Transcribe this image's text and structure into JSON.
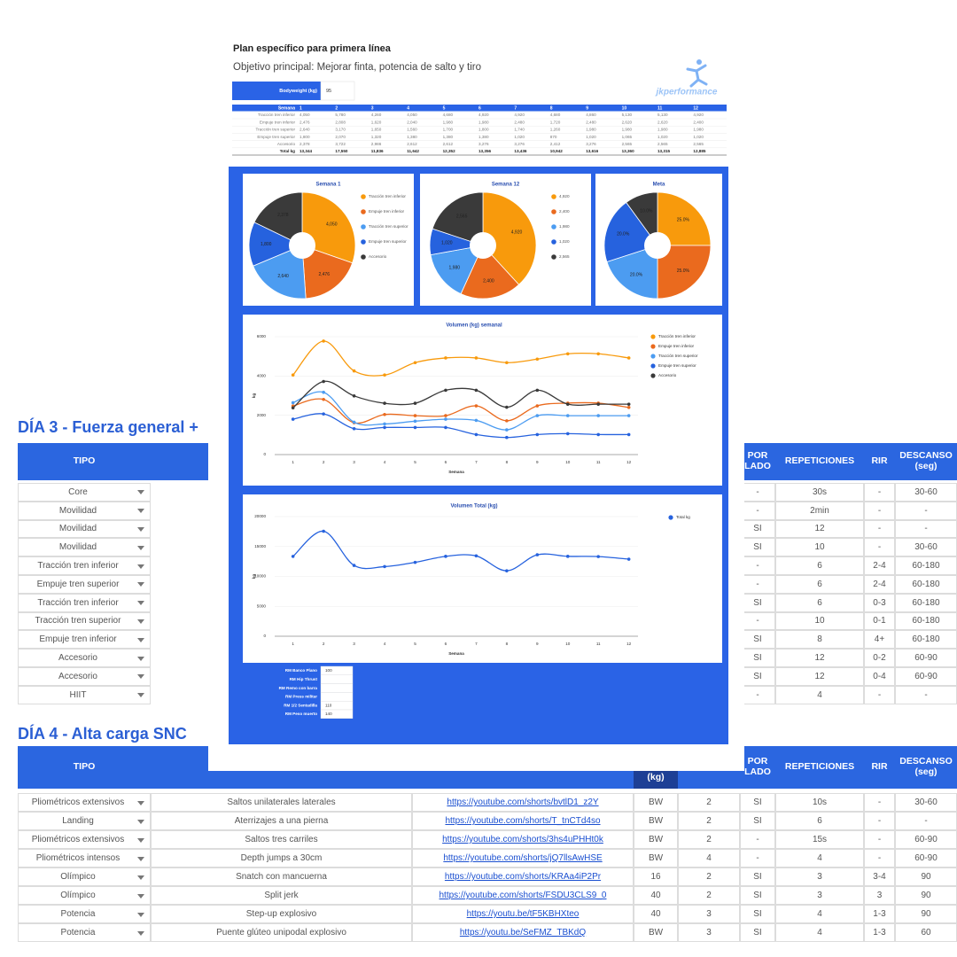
{
  "overlay": {
    "title": "Plan específico para primera línea",
    "subtitle": "Objetivo principal: Mejorar finta, potencia de salto y tiro",
    "logo": "jkperformance",
    "bodyweight": {
      "label": "Bodyweight (kg)",
      "value": "95"
    },
    "volume_table": {
      "header": [
        "Semana",
        "1",
        "2",
        "3",
        "4",
        "5",
        "6",
        "7",
        "8",
        "9",
        "10",
        "11",
        "12"
      ],
      "rows": [
        [
          "Tracción tren inferior",
          "4,050",
          "5,780",
          "4,260",
          "4,050",
          "4,680",
          "4,920",
          "4,920",
          "4,680",
          "4,860",
          "5,130",
          "5,130",
          "4,920"
        ],
        [
          "Empuje tren inferior",
          "2,476",
          "2,808",
          "1,620",
          "2,040",
          "1,980",
          "1,980",
          "2,480",
          "1,720",
          "2,480",
          "2,620",
          "2,620",
          "2,400"
        ],
        [
          "Tracción tren superior",
          "2,640",
          "3,170",
          "1,650",
          "1,560",
          "1,700",
          "1,800",
          "1,740",
          "1,260",
          "1,980",
          "1,980",
          "1,980",
          "1,980"
        ],
        [
          "Empuje tren superior",
          "1,800",
          "2,070",
          "1,320",
          "1,380",
          "1,380",
          "1,380",
          "1,020",
          "870",
          "1,020",
          "1,065",
          "1,020",
          "1,020"
        ],
        [
          "Accesorio",
          "2,378",
          "3,722",
          "2,986",
          "2,612",
          "2,612",
          "3,276",
          "3,276",
          "2,412",
          "3,276",
          "2,565",
          "2,565",
          "2,565"
        ],
        [
          "Total kg",
          "13,344",
          "17,550",
          "11,836",
          "11,642",
          "12,352",
          "13,356",
          "13,436",
          "10,942",
          "13,616",
          "13,360",
          "13,315",
          "12,885"
        ]
      ]
    },
    "rm": [
      {
        "label": "RM Banco Plano",
        "value": "100"
      },
      {
        "label": "RM Hip Thrust"
      },
      {
        "label": "RM Remo con barra"
      },
      {
        "label": "RM Press militar"
      },
      {
        "label": "RM 1/2 Sentadilla",
        "value": "110"
      },
      {
        "label": "RM Peso muerto",
        "value": "140"
      }
    ]
  },
  "chart_data": [
    {
      "type": "pie",
      "title": "Semana 1",
      "categories": [
        "Tracción tren inferior",
        "Empuje tren inferior",
        "Tracción tren superior",
        "Empuje tren superior",
        "Accesorio"
      ],
      "values": [
        4050,
        2476,
        2640,
        1800,
        2378
      ],
      "value_labels": [
        "4,050",
        "2,476",
        "2,640",
        "1,800",
        "2,378"
      ],
      "colors": [
        "#f89a0c",
        "#ea6a1e",
        "#4c9cf1",
        "#2662de",
        "#3a3a3a"
      ]
    },
    {
      "type": "pie",
      "title": "Semana 12",
      "categories": [
        "4,920",
        "2,400",
        "1,980",
        "1,020",
        "2,565"
      ],
      "values": [
        4920,
        2400,
        1980,
        1020,
        2565
      ],
      "value_labels": [
        "4,920",
        "2,400",
        "1,980",
        "1,020",
        "2,565"
      ],
      "colors": [
        "#f89a0c",
        "#ea6a1e",
        "#4c9cf1",
        "#2662de",
        "#3a3a3a"
      ]
    },
    {
      "type": "pie",
      "title": "Meta",
      "values": [
        25,
        25,
        20,
        20,
        10
      ],
      "value_labels": [
        "25.0%",
        "25.0%",
        "20.0%",
        "20.0%",
        "10.0%"
      ],
      "colors": [
        "#f89a0c",
        "#ea6a1e",
        "#4c9cf1",
        "#2662de",
        "#3a3a3a"
      ]
    },
    {
      "type": "line",
      "title": "Volumen (kg) semanal",
      "xlabel": "Semana",
      "ylabel": "kg",
      "x": [
        1,
        2,
        3,
        4,
        5,
        6,
        7,
        8,
        9,
        10,
        11,
        12
      ],
      "xlim": [
        0.4,
        12.3
      ],
      "xticks": [
        1,
        2,
        3,
        4,
        5,
        6,
        7,
        8,
        9,
        10,
        11,
        12
      ],
      "ylim": [
        0,
        6000
      ],
      "yticks": [
        0,
        2000,
        4000,
        6000
      ],
      "grid": true,
      "series": [
        {
          "name": "Tracción tren inferior",
          "color": "#f89a0c",
          "values": [
            4050,
            5780,
            4260,
            4050,
            4680,
            4920,
            4920,
            4680,
            4860,
            5130,
            5130,
            4920
          ]
        },
        {
          "name": "Empuje tren inferior",
          "color": "#ea6a1e",
          "values": [
            2476,
            2808,
            1620,
            2040,
            1980,
            1980,
            2480,
            1720,
            2480,
            2620,
            2620,
            2400
          ]
        },
        {
          "name": "Tracción tren superior",
          "color": "#4c9cf1",
          "values": [
            2640,
            3170,
            1650,
            1560,
            1700,
            1800,
            1740,
            1260,
            1980,
            1980,
            1980,
            1980
          ]
        },
        {
          "name": "Empuje tren superior",
          "color": "#2662de",
          "values": [
            1800,
            2070,
            1320,
            1380,
            1380,
            1380,
            1020,
            870,
            1020,
            1065,
            1020,
            1020
          ]
        },
        {
          "name": "Accesorio",
          "color": "#3a3a3a",
          "values": [
            2378,
            3722,
            2986,
            2612,
            2612,
            3276,
            3276,
            2412,
            3276,
            2565,
            2565,
            2565
          ]
        }
      ]
    },
    {
      "type": "line",
      "title": "Volumen Total (kg)",
      "xlabel": "Semana",
      "ylabel": "kg",
      "x": [
        1,
        2,
        3,
        4,
        5,
        6,
        7,
        8,
        9,
        10,
        11,
        12
      ],
      "xlim": [
        0.4,
        12.3
      ],
      "xticks": [
        1,
        2,
        3,
        4,
        5,
        6,
        7,
        8,
        9,
        10,
        11,
        12
      ],
      "ylim": [
        0,
        20000
      ],
      "yticks": [
        0,
        5000,
        10000,
        15000,
        20000
      ],
      "grid": true,
      "series": [
        {
          "name": "Total kg",
          "color": "#2662de",
          "values": [
            13344,
            17550,
            11836,
            11642,
            12352,
            13356,
            13436,
            10942,
            13616,
            13360,
            13315,
            12885
          ]
        }
      ]
    }
  ],
  "day3": {
    "title": "DÍA 3 - Fuerza general +",
    "header": [
      "TIPO",
      "POR LADO",
      "REPETICIONES",
      "RIR",
      "DESCANSO (seg)"
    ],
    "rows": [
      [
        "Core",
        "-",
        "30s",
        "-",
        "30-60"
      ],
      [
        "Movilidad",
        "-",
        "2min",
        "-",
        "-"
      ],
      [
        "Movilidad",
        "SI",
        "12",
        "-",
        "-"
      ],
      [
        "Movilidad",
        "SI",
        "10",
        "-",
        "30-60"
      ],
      [
        "Tracción tren inferior",
        "-",
        "6",
        "2-4",
        "60-180"
      ],
      [
        "Empuje tren superior",
        "-",
        "6",
        "2-4",
        "60-180"
      ],
      [
        "Tracción tren inferior",
        "SI",
        "6",
        "0-3",
        "60-180"
      ],
      [
        "Tracción tren superior",
        "-",
        "10",
        "0-1",
        "60-180"
      ],
      [
        "Empuje tren inferior",
        "SI",
        "8",
        "4+",
        "60-180"
      ],
      [
        "Accesorio",
        "SI",
        "12",
        "0-2",
        "60-90"
      ],
      [
        "Accesorio",
        "SI",
        "12",
        "0-4",
        "60-90"
      ],
      [
        "HIIT",
        "-",
        "4",
        "-",
        "-"
      ]
    ]
  },
  "day4": {
    "title": "DÍA 4 - Alta carga SNC",
    "header": [
      "TIPO",
      "(kg)",
      "POR LADO",
      "REPETICIONES",
      "RIR",
      "DESCANSO (seg)"
    ],
    "rows": [
      [
        "Pliométricos extensivos",
        "Saltos unilaterales laterales",
        "https://youtube.com/shorts/bvtlD1_z2Y",
        "BW",
        "2",
        "SI",
        "10s",
        "-",
        "30-60"
      ],
      [
        "Landing",
        "Aterrizajes a una pierna",
        "https://youtube.com/shorts/T_tnCTd4so",
        "BW",
        "2",
        "SI",
        "6",
        "-",
        "-"
      ],
      [
        "Pliométricos extensivos",
        "Saltos tres carriles",
        "https://youtube.com/shorts/3hs4uPHHt0k",
        "BW",
        "2",
        "-",
        "15s",
        "-",
        "60-90"
      ],
      [
        "Pliométricos intensos",
        "Depth jumps a 30cm",
        "https://youtube.com/shorts/jQ7llsAwHSE",
        "BW",
        "4",
        "-",
        "4",
        "-",
        "60-90"
      ],
      [
        "Olímpico",
        "Snatch con mancuerna",
        "https://youtube.com/shorts/KRAa4iP2Pr",
        "16",
        "2",
        "SI",
        "3",
        "3-4",
        "90"
      ],
      [
        "Olímpico",
        "Split jerk",
        "https://youtube.com/shorts/FSDU3CLS9_0",
        "40",
        "2",
        "SI",
        "3",
        "3",
        "90"
      ],
      [
        "Potencia",
        "Step-up explosivo",
        "https://youtu.be/tF5KBHXteo",
        "40",
        "3",
        "SI",
        "4",
        "1-3",
        "90"
      ],
      [
        "Potencia",
        "Puente glúteo unipodal explosivo",
        "https://youtu.be/SeFMZ_TBKdQ",
        "BW",
        "3",
        "SI",
        "4",
        "1-3",
        "60"
      ]
    ]
  }
}
